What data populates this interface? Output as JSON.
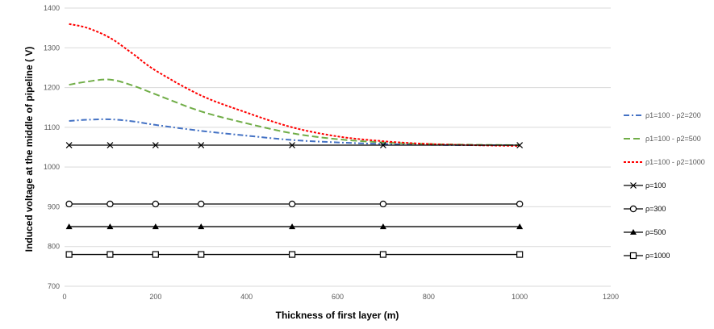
{
  "chart_data": {
    "type": "line",
    "title": "",
    "xlabel": "Thickness of first layer (m)",
    "ylabel": "Induced voltage at the middle of pipeline ( V)",
    "xlim": [
      0,
      1200
    ],
    "ylim": [
      700,
      1400
    ],
    "x_ticks": [
      "0",
      "200",
      "400",
      "600",
      "800",
      "1000",
      "1200"
    ],
    "y_ticks": [
      "700",
      "800",
      "900",
      "1000",
      "1100",
      "1200",
      "1300",
      "1400"
    ],
    "grid": "horizontal major gridlines",
    "legend_position": "right",
    "series": [
      {
        "name": "ρ1=100 - ρ2=200",
        "style": "dash-dot",
        "color": "#4472C4",
        "marker": "none",
        "x": [
          10,
          50,
          100,
          150,
          200,
          300,
          400,
          500,
          600,
          700,
          800,
          900,
          1000
        ],
        "y": [
          1116,
          1119,
          1120,
          1115,
          1106,
          1091,
          1079,
          1068,
          1062,
          1058,
          1056,
          1055,
          1055
        ]
      },
      {
        "name": "ρ1=100 - ρ2=500",
        "style": "dash",
        "color": "#70AD47",
        "marker": "none",
        "x": [
          10,
          50,
          100,
          150,
          200,
          300,
          400,
          500,
          600,
          700,
          800,
          900,
          1000
        ],
        "y": [
          1207,
          1215,
          1220,
          1205,
          1183,
          1140,
          1110,
          1085,
          1070,
          1062,
          1058,
          1056,
          1055
        ]
      },
      {
        "name": "ρ1=100 - ρ2=1000",
        "style": "dot",
        "color": "#FF0000",
        "marker": "none",
        "x": [
          10,
          50,
          100,
          150,
          200,
          300,
          400,
          500,
          600,
          700,
          800,
          900,
          1000
        ],
        "y": [
          1360,
          1350,
          1325,
          1285,
          1243,
          1180,
          1137,
          1100,
          1077,
          1065,
          1058,
          1055,
          1053
        ]
      },
      {
        "name": "ρ=100",
        "style": "solid",
        "color": "#000000",
        "marker": "x",
        "x": [
          10,
          100,
          200,
          300,
          500,
          700,
          1000
        ],
        "y": [
          1055,
          1055,
          1055,
          1055,
          1055,
          1055,
          1055
        ]
      },
      {
        "name": "ρ=300",
        "style": "solid",
        "color": "#000000",
        "marker": "circle",
        "x": [
          10,
          100,
          200,
          300,
          500,
          700,
          1000
        ],
        "y": [
          907,
          907,
          907,
          907,
          907,
          907,
          907
        ]
      },
      {
        "name": "ρ=500",
        "style": "solid",
        "color": "#000000",
        "marker": "triangle",
        "x": [
          10,
          100,
          200,
          300,
          500,
          700,
          1000
        ],
        "y": [
          850,
          850,
          850,
          850,
          850,
          850,
          850
        ]
      },
      {
        "name": "ρ=1000",
        "style": "solid",
        "color": "#000000",
        "marker": "square",
        "x": [
          10,
          100,
          200,
          300,
          500,
          700,
          1000
        ],
        "y": [
          780,
          780,
          780,
          780,
          780,
          780,
          780
        ]
      }
    ]
  }
}
